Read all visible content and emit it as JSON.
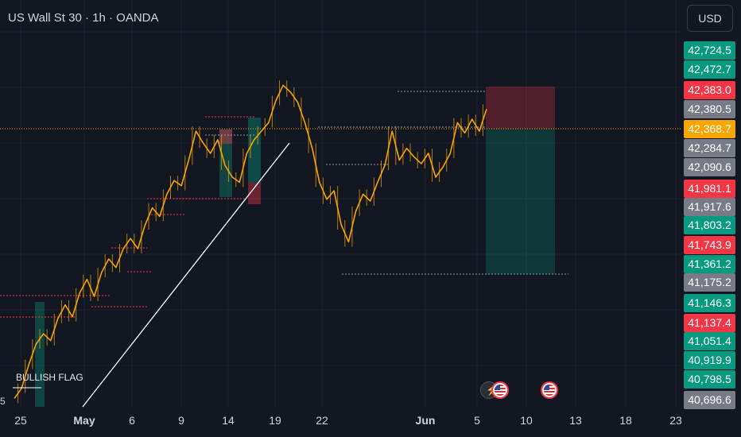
{
  "header": {
    "title": "US Wall St 30 · 1h · OANDA"
  },
  "currency": {
    "label": "USD"
  },
  "price_scale": [
    {
      "label": "42,724.5",
      "color": "#089981"
    },
    {
      "label": "42,472.7",
      "color": "#089981"
    },
    {
      "label": "42,383.0",
      "color": "#f23645"
    },
    {
      "label": "42,380.5",
      "color": "#787b86"
    },
    {
      "label": "42,368.7",
      "color": "#f7a600"
    },
    {
      "label": "42,284.7",
      "color": "#787b86"
    },
    {
      "label": "42,090.6",
      "color": "#787b86"
    },
    {
      "label": "41,981.1",
      "color": "#f23645"
    },
    {
      "label": "41,917.6",
      "color": "#787b86"
    },
    {
      "label": "41,803.2",
      "color": "#089981"
    },
    {
      "label": "41,743.9",
      "color": "#f23645"
    },
    {
      "label": "41,361.2",
      "color": "#089981"
    },
    {
      "label": "41,175.2",
      "color": "#787b86"
    },
    {
      "label": "41,146.3",
      "color": "#089981"
    },
    {
      "label": "41,137.4",
      "color": "#f23645"
    },
    {
      "label": "41,051.4",
      "color": "#089981"
    },
    {
      "label": "40,919.9",
      "color": "#089981"
    },
    {
      "label": "40,798.5",
      "color": "#089981"
    },
    {
      "label": "40,696.6",
      "color": "#787b86"
    }
  ],
  "time_axis": [
    {
      "label": "25",
      "bold": false
    },
    {
      "label": "May",
      "bold": true
    },
    {
      "label": "6",
      "bold": false
    },
    {
      "label": "9",
      "bold": false
    },
    {
      "label": "14",
      "bold": false
    },
    {
      "label": "19",
      "bold": false
    },
    {
      "label": "22",
      "bold": false
    },
    {
      "label": "Jun",
      "bold": true
    },
    {
      "label": "5",
      "bold": false
    },
    {
      "label": "10",
      "bold": false
    },
    {
      "label": "13",
      "bold": false
    },
    {
      "label": "18",
      "bold": false
    },
    {
      "label": "23",
      "bold": false
    }
  ],
  "annotations": {
    "bullish_flag": "BULLISH FLAG",
    "partial_left": "5"
  },
  "chart_data": {
    "type": "line",
    "colors": {
      "candles": "#f7a600",
      "current_price_line": "#f7a600",
      "trendline": "#ffffff",
      "stop_zone": "#f23645",
      "target_zone": "#089981"
    },
    "current_price": 42368.7,
    "position": {
      "side": "short",
      "stop_price": 42383.0
    },
    "series": [
      {
        "values": [
          40680,
          40740,
          40880,
          41000,
          41060,
          41020,
          41150,
          41230,
          41160,
          41300,
          41380,
          41280,
          41420,
          41500,
          41450,
          41560,
          41620,
          41560,
          41700,
          41800,
          41750,
          41880,
          41960,
          41930,
          42080,
          42250,
          42180,
          42120,
          42200,
          42050,
          41980,
          41950,
          42120,
          42200,
          42250,
          42300,
          42430,
          42520,
          42480,
          42420,
          42300,
          42150,
          41950,
          41850,
          41900,
          41700,
          41600,
          41780,
          41880,
          41840,
          41950,
          42050,
          42250,
          42080,
          42150,
          42100,
          42060,
          42120,
          41980,
          42040,
          42120,
          42300,
          42240,
          42320,
          42250,
          42380
        ]
      }
    ]
  },
  "events": [
    {
      "icon": "lightning-icon"
    },
    {
      "icon": "us-flag-icon"
    },
    {
      "icon": "us-flag-icon"
    }
  ]
}
